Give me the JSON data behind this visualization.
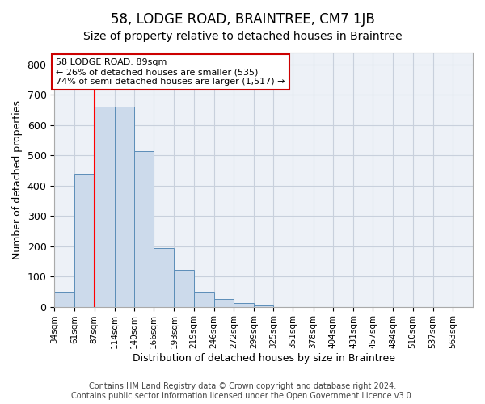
{
  "title": "58, LODGE ROAD, BRAINTREE, CM7 1JB",
  "subtitle": "Size of property relative to detached houses in Braintree",
  "xlabel": "Distribution of detached houses by size in Braintree",
  "ylabel": "Number of detached properties",
  "bin_edges": [
    34,
    61,
    87,
    114,
    140,
    166,
    193,
    219,
    246,
    272,
    299,
    325,
    351,
    378,
    404,
    431,
    457,
    484,
    510,
    537,
    563
  ],
  "bar_heights": [
    47,
    440,
    660,
    660,
    513,
    195,
    122,
    47,
    25,
    12,
    5,
    0,
    0,
    0,
    0,
    0,
    0,
    0,
    0,
    0
  ],
  "bar_color": "#ccdaeb",
  "bar_edge_color": "#5b8db8",
  "red_line_x": 87,
  "ylim": [
    0,
    840
  ],
  "yticks": [
    0,
    100,
    200,
    300,
    400,
    500,
    600,
    700,
    800
  ],
  "annotation_text": "58 LODGE ROAD: 89sqm\n← 26% of detached houses are smaller (535)\n74% of semi-detached houses are larger (1,517) →",
  "annotation_box_color": "#ffffff",
  "annotation_box_edge": "#cc0000",
  "grid_color": "#c8d0dc",
  "background_color": "#edf1f7",
  "footer_line1": "Contains HM Land Registry data © Crown copyright and database right 2024.",
  "footer_line2": "Contains public sector information licensed under the Open Government Licence v3.0.",
  "title_fontsize": 12,
  "subtitle_fontsize": 10,
  "tick_label_fontsize": 7.5,
  "ylabel_fontsize": 9,
  "xlabel_fontsize": 9,
  "footer_fontsize": 7
}
